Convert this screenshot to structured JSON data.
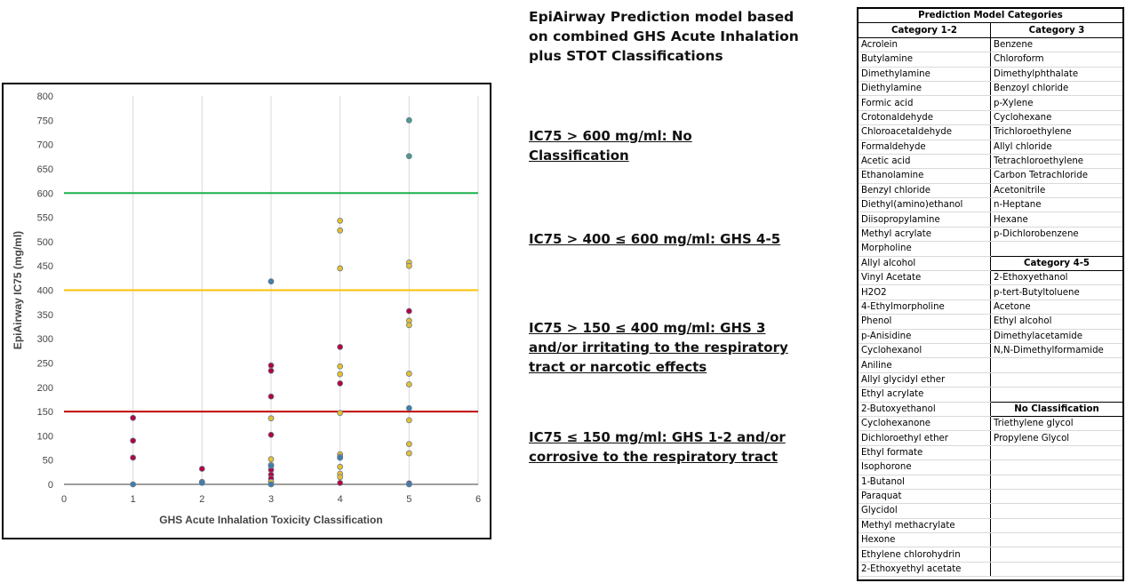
{
  "middle": {
    "title": "EpiAirway Prediction model based on combined GHS Acute Inhalation plus STOT Classifications",
    "rule1": "IC75 > 600 mg/ml: No Classification",
    "rule2": "IC75 > 400 ≤ 600 mg/ml: GHS 4-5",
    "rule3": "IC75 > 150 ≤ 400 mg/ml: GHS 3 and/or irritating to the respiratory tract or narcotic effects",
    "rule4": "IC75 ≤ 150 mg/ml: GHS 1-2 and/or corrosive to the respiratory tract"
  },
  "chart_data": {
    "type": "scatter",
    "title": "",
    "xlabel": "GHS Acute Inhalation Toxicity Classification",
    "ylabel": "EpiAirway IC75 (mg/ml)",
    "xlim": [
      0,
      6
    ],
    "ylim": [
      0,
      800
    ],
    "xticks": [
      0,
      1,
      2,
      3,
      4,
      5,
      6
    ],
    "yticks": [
      0,
      50,
      100,
      150,
      200,
      250,
      300,
      350,
      400,
      450,
      500,
      550,
      600,
      650,
      700,
      750,
      800
    ],
    "grid": "vertical",
    "thresholds": [
      {
        "y": 600,
        "color": "#1db14b"
      },
      {
        "y": 400,
        "color": "#ffc000"
      },
      {
        "y": 150,
        "color": "#c00000"
      }
    ],
    "series": [
      {
        "color": "#b5003f",
        "points": [
          [
            1,
            137
          ],
          [
            1,
            90
          ],
          [
            1,
            55
          ],
          [
            2,
            32
          ],
          [
            3,
            245
          ],
          [
            3,
            234
          ],
          [
            3,
            181
          ],
          [
            3,
            102
          ],
          [
            3,
            30
          ],
          [
            3,
            20
          ],
          [
            3,
            12
          ],
          [
            3,
            5
          ],
          [
            4,
            283
          ],
          [
            4,
            208
          ],
          [
            4,
            55
          ],
          [
            4,
            3
          ],
          [
            5,
            357
          ],
          [
            5,
            2
          ]
        ]
      },
      {
        "color": "#e6c02e",
        "points": [
          [
            3,
            136
          ],
          [
            3,
            52
          ],
          [
            3,
            40
          ],
          [
            3,
            5
          ],
          [
            4,
            543
          ],
          [
            4,
            523
          ],
          [
            4,
            445
          ],
          [
            4,
            243
          ],
          [
            4,
            227
          ],
          [
            4,
            147
          ],
          [
            4,
            62
          ],
          [
            4,
            57
          ],
          [
            4,
            36
          ],
          [
            4,
            22
          ],
          [
            4,
            15
          ],
          [
            5,
            457
          ],
          [
            5,
            450
          ],
          [
            5,
            337
          ],
          [
            5,
            328
          ],
          [
            5,
            228
          ],
          [
            5,
            206
          ],
          [
            5,
            132
          ],
          [
            5,
            83
          ],
          [
            5,
            64
          ]
        ]
      },
      {
        "color": "#3f7ea8",
        "points": [
          [
            1,
            0
          ],
          [
            2,
            5
          ],
          [
            2,
            3
          ],
          [
            3,
            418
          ],
          [
            3,
            38
          ],
          [
            3,
            0
          ],
          [
            4,
            55
          ],
          [
            5,
            157
          ],
          [
            5,
            0
          ]
        ]
      },
      {
        "color": "#4e9a8c",
        "points": [
          [
            5,
            750
          ],
          [
            5,
            676
          ]
        ]
      }
    ]
  },
  "table": {
    "title": "Prediction Model Categories",
    "headers": [
      "Category 1-2",
      "Category 3"
    ],
    "rows": [
      [
        "Acrolein",
        "Benzene"
      ],
      [
        "Butylamine",
        "Chloroform"
      ],
      [
        "Dimethylamine",
        "Dimethylphthalate"
      ],
      [
        "Diethylamine",
        "Benzoyl chloride"
      ],
      [
        "Formic acid",
        "p-Xylene"
      ],
      [
        "Crotonaldehyde",
        "Cyclohexane"
      ],
      [
        "Chloroacetaldehyde",
        "Trichloroethylene"
      ],
      [
        "Formaldehyde",
        "Allyl chloride"
      ],
      [
        "Acetic acid",
        "Tetrachloroethylene"
      ],
      [
        "Ethanolamine",
        "Carbon Tetrachloride"
      ],
      [
        "Benzyl chloride",
        "Acetonitrile"
      ],
      [
        "Diethyl(amino)ethanol",
        "n-Heptane"
      ],
      [
        "Diisopropylamine",
        "Hexane"
      ],
      [
        "Methyl acrylate",
        "p-Dichlorobenzene"
      ],
      [
        "Morpholine",
        ""
      ],
      [
        "Allyl alcohol",
        "Category 4-5"
      ],
      [
        "Vinyl Acetate",
        "2-Ethoxyethanol"
      ],
      [
        "H2O2",
        "p-tert-Butyltoluene"
      ],
      [
        "4-Ethylmorpholine",
        "Acetone"
      ],
      [
        "Phenol",
        "Ethyl alcohol"
      ],
      [
        "p-Anisidine",
        "Dimethylacetamide"
      ],
      [
        "Cyclohexanol",
        "N,N-Dimethylformamide"
      ],
      [
        "Aniline",
        ""
      ],
      [
        "Allyl glycidyl ether",
        ""
      ],
      [
        "Ethyl acrylate",
        ""
      ],
      [
        "2-Butoxyethanol",
        "No Classification"
      ],
      [
        "Cyclohexanone",
        "Triethylene glycol"
      ],
      [
        "Dichloroethyl ether",
        "Propylene Glycol"
      ],
      [
        "Ethyl formate",
        ""
      ],
      [
        "Isophorone",
        ""
      ],
      [
        "1-Butanol",
        ""
      ],
      [
        "Paraquat",
        ""
      ],
      [
        "Glycidol",
        ""
      ],
      [
        "Methyl methacrylate",
        ""
      ],
      [
        "Hexone",
        ""
      ],
      [
        "Ethylene chlorohydrin",
        ""
      ],
      [
        "2-Ethoxyethyl acetate",
        ""
      ]
    ],
    "subheaders": [
      "Category 4-5",
      "No Classification"
    ]
  }
}
